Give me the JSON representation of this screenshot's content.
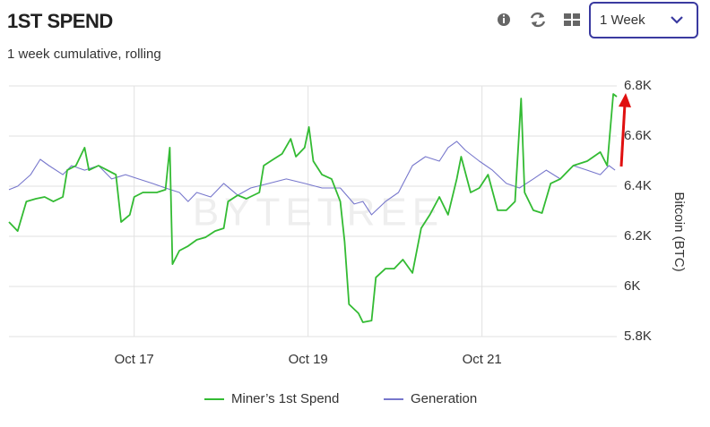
{
  "header": {
    "title": "1ST SPEND",
    "subtitle": "1 week cumulative, rolling",
    "period": "1 Week"
  },
  "chart_data": {
    "type": "line",
    "y_axis_label": "Bitcoin (BTC)",
    "watermark": "BYTETREE",
    "xlim": [
      15.56,
      22.55
    ],
    "xticks": [
      {
        "value": 17,
        "label": "Oct 17"
      },
      {
        "value": 19,
        "label": "Oct 19"
      },
      {
        "value": 21,
        "label": "Oct 21"
      }
    ],
    "ylim": [
      5800,
      6800
    ],
    "yticks": [
      {
        "value": 5800,
        "label": "5.8K"
      },
      {
        "value": 6000,
        "label": "6K"
      },
      {
        "value": 6200,
        "label": "6.2K"
      },
      {
        "value": 6400,
        "label": "6.4K"
      },
      {
        "value": 6600,
        "label": "6.6K"
      },
      {
        "value": 6800,
        "label": "6.8K"
      }
    ],
    "grid": true,
    "series": [
      {
        "name": "Miner’s 1st Spend",
        "color": "#33bb33",
        "x": [
          15.56,
          15.66,
          15.76,
          15.87,
          15.97,
          16.07,
          16.18,
          16.23,
          16.33,
          16.43,
          16.48,
          16.59,
          16.69,
          16.79,
          16.85,
          16.95,
          17.0,
          17.1,
          17.26,
          17.36,
          17.41,
          17.44,
          17.52,
          17.62,
          17.72,
          17.82,
          17.93,
          18.03,
          18.08,
          18.19,
          18.29,
          18.44,
          18.49,
          18.6,
          18.7,
          18.8,
          18.86,
          18.96,
          19.01,
          19.06,
          19.16,
          19.27,
          19.37,
          19.42,
          19.47,
          19.58,
          19.63,
          19.73,
          19.78,
          19.89,
          19.99,
          20.09,
          20.2,
          20.3,
          20.4,
          20.51,
          20.61,
          20.71,
          20.76,
          20.87,
          20.97,
          21.07,
          21.18,
          21.28,
          21.38,
          21.45,
          21.49,
          21.59,
          21.69,
          21.79,
          21.9,
          22.05,
          22.21,
          22.36,
          22.44,
          22.51,
          22.55
        ],
        "values": [
          6257,
          6221,
          6339,
          6350,
          6357,
          6339,
          6357,
          6464,
          6482,
          6554,
          6464,
          6482,
          6464,
          6446,
          6257,
          6286,
          6357,
          6375,
          6375,
          6386,
          6554,
          6089,
          6143,
          6161,
          6186,
          6196,
          6221,
          6232,
          6339,
          6364,
          6350,
          6375,
          6482,
          6507,
          6529,
          6589,
          6518,
          6554,
          6636,
          6500,
          6446,
          6429,
          6339,
          6179,
          5929,
          5893,
          5857,
          5864,
          6036,
          6071,
          6071,
          6107,
          6054,
          6232,
          6286,
          6357,
          6286,
          6429,
          6518,
          6375,
          6393,
          6446,
          6304,
          6304,
          6339,
          6750,
          6375,
          6304,
          6293,
          6411,
          6429,
          6482,
          6500,
          6536,
          6482,
          6768,
          6757
        ]
      },
      {
        "name": "Generation",
        "color": "#7777cc",
        "x": [
          15.56,
          15.66,
          15.81,
          15.92,
          16.02,
          16.18,
          16.28,
          16.43,
          16.59,
          16.74,
          16.9,
          17.05,
          17.21,
          17.36,
          17.52,
          17.62,
          17.72,
          17.88,
          18.03,
          18.19,
          18.34,
          18.55,
          18.75,
          18.96,
          19.16,
          19.37,
          19.53,
          19.63,
          19.73,
          19.89,
          20.04,
          20.2,
          20.35,
          20.51,
          20.61,
          20.71,
          20.81,
          20.97,
          21.12,
          21.28,
          21.43,
          21.59,
          21.74,
          21.9,
          22.05,
          22.21,
          22.36,
          22.46,
          22.53
        ],
        "values": [
          6386,
          6400,
          6446,
          6507,
          6482,
          6446,
          6482,
          6464,
          6482,
          6429,
          6446,
          6429,
          6411,
          6393,
          6375,
          6339,
          6375,
          6357,
          6411,
          6364,
          6393,
          6411,
          6429,
          6411,
          6393,
          6393,
          6329,
          6339,
          6286,
          6339,
          6375,
          6482,
          6518,
          6500,
          6554,
          6579,
          6543,
          6500,
          6464,
          6411,
          6393,
          6429,
          6464,
          6429,
          6482,
          6464,
          6446,
          6482,
          6464
        ]
      }
    ]
  }
}
